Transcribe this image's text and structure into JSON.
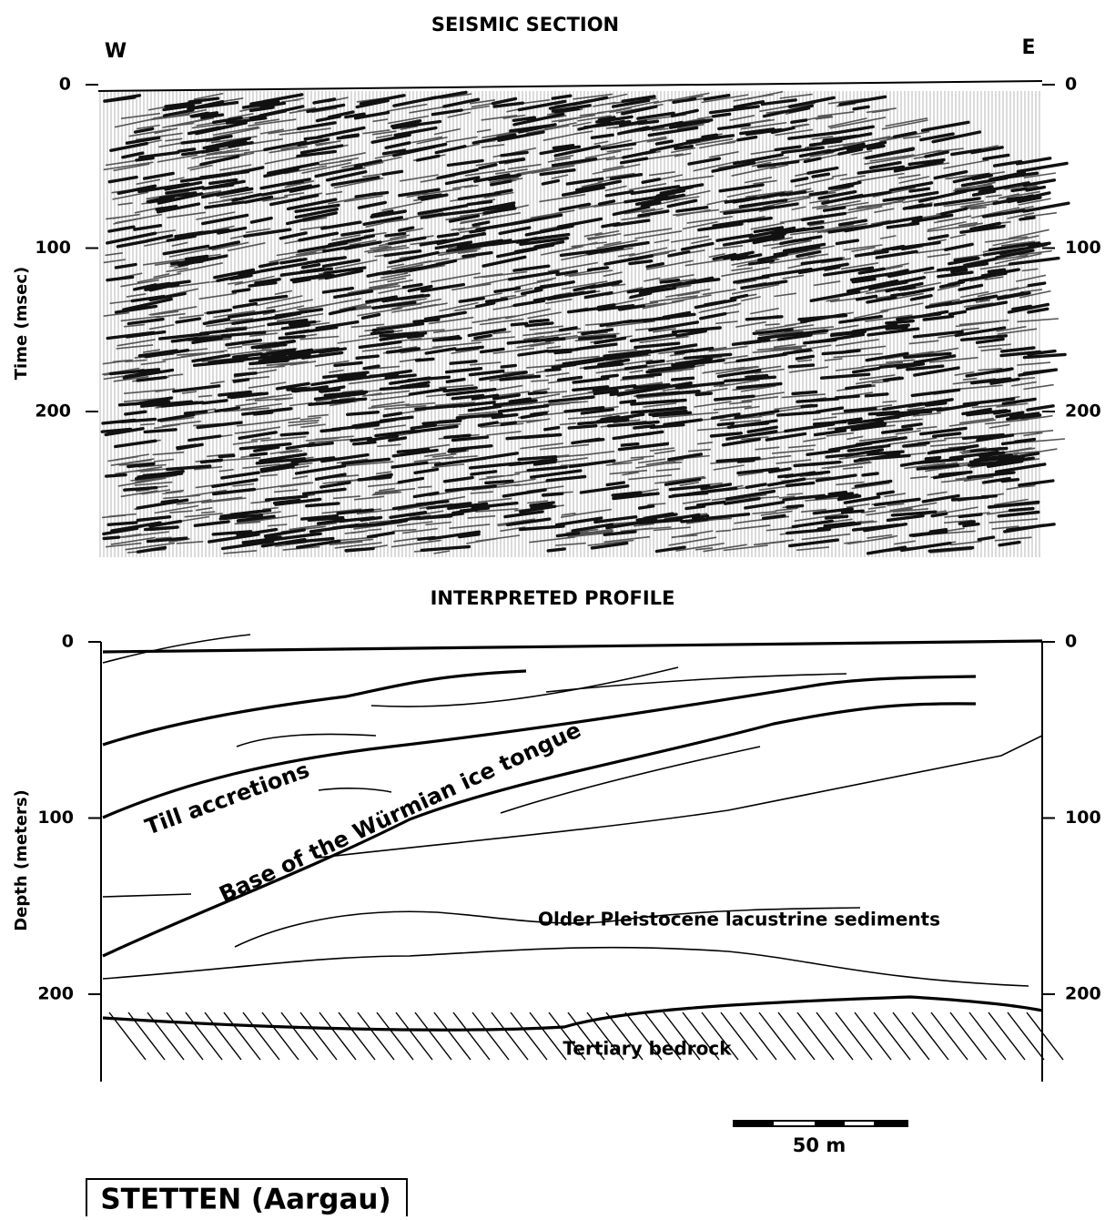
{
  "seismic_section": {
    "title": "SEISMIC SECTION",
    "west": "W",
    "east": "E",
    "y_label": "Time (msec)",
    "yticks": [
      0,
      100,
      200
    ]
  },
  "interpreted_profile": {
    "title": "INTERPRETED PROFILE",
    "y_label": "Depth (meters)",
    "yticks": [
      0,
      100,
      200
    ],
    "labels": [
      "Till accretions",
      "Base of the Würmian ice tongue",
      "Older Pleistocene lacustrine sediments",
      "Tertiary bedrock"
    ]
  },
  "scale_bar": "50 m",
  "location": "STETTEN (Aargau)"
}
